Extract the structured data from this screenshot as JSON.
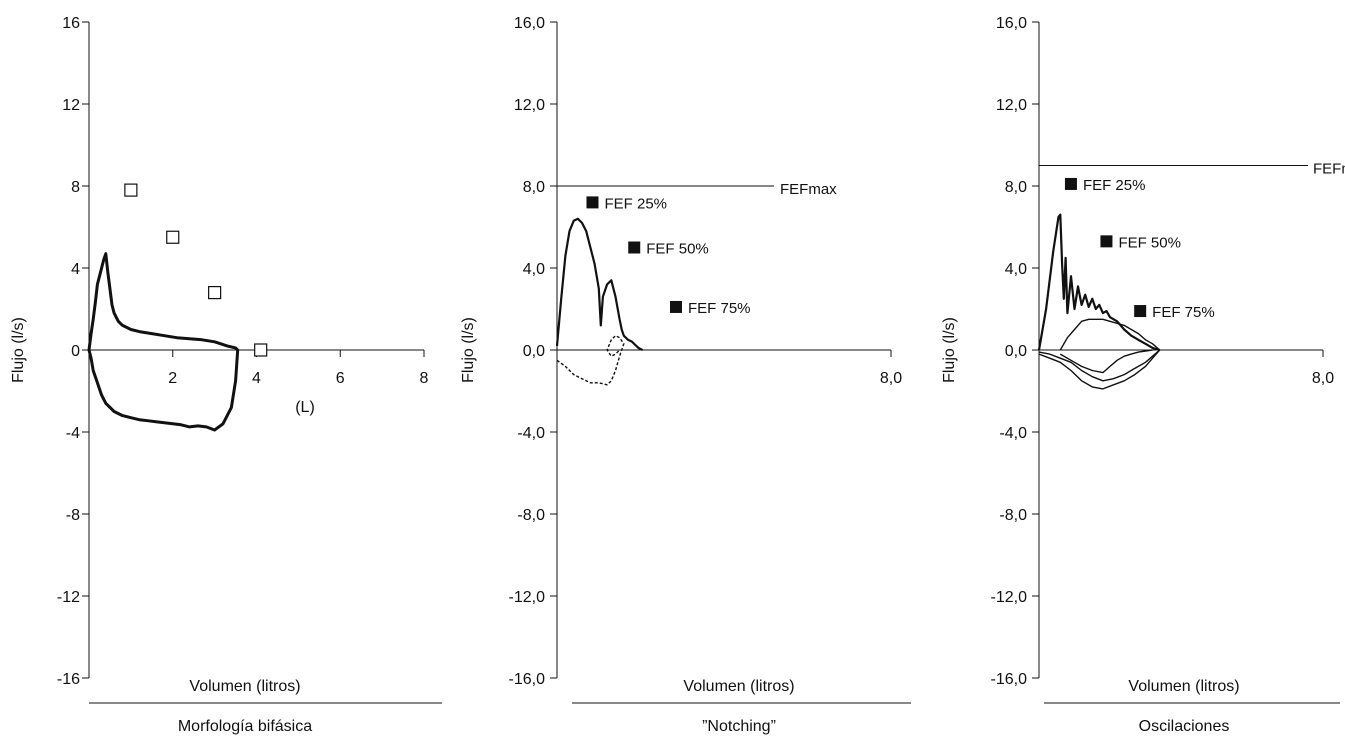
{
  "chart_data": [
    {
      "type": "line",
      "panel_title": "Morfología bifásica",
      "xlabel": "Volumen (litros)",
      "xunit_label": "(L)",
      "ylabel": "Flujo (l/s)",
      "xlim": [
        0,
        8
      ],
      "ylim": [
        -16,
        16
      ],
      "x_ticks": [
        "2",
        "4",
        "6",
        "8"
      ],
      "y_ticks": [
        "16",
        "12",
        "8",
        "4",
        "0",
        "-4",
        "-8",
        "-12",
        "-16"
      ],
      "series": [
        {
          "x": [
            0.0,
            0.05,
            0.1,
            0.15,
            0.2,
            0.3,
            0.35,
            0.4,
            0.45,
            0.5,
            0.55,
            0.6,
            0.7,
            0.8,
            0.9,
            1.0,
            1.2,
            1.5,
            1.8,
            2.1,
            2.4,
            2.7,
            3.0,
            3.3,
            3.5,
            3.55,
            3.5,
            3.4,
            3.2,
            3.0,
            2.8,
            2.6,
            2.4,
            2.2,
            2.0,
            1.8,
            1.6,
            1.4,
            1.2,
            1.0,
            0.8,
            0.6,
            0.4,
            0.3,
            0.2,
            0.1,
            0.05,
            0.0
          ],
          "y": [
            0.0,
            0.8,
            1.5,
            2.3,
            3.2,
            4.0,
            4.4,
            4.7,
            3.8,
            3.0,
            2.2,
            1.8,
            1.4,
            1.2,
            1.1,
            1.0,
            0.9,
            0.8,
            0.7,
            0.6,
            0.55,
            0.5,
            0.4,
            0.2,
            0.1,
            0.0,
            -1.5,
            -2.8,
            -3.6,
            -3.9,
            -3.75,
            -3.7,
            -3.75,
            -3.65,
            -3.6,
            -3.55,
            -3.5,
            -3.45,
            -3.4,
            -3.3,
            -3.2,
            -3.0,
            -2.6,
            -2.2,
            -1.6,
            -1.0,
            -0.4,
            0.0
          ]
        }
      ],
      "markers": {
        "style": "open-square",
        "points": [
          {
            "x": 1.0,
            "y": 7.8
          },
          {
            "x": 2.0,
            "y": 5.5
          },
          {
            "x": 3.0,
            "y": 2.8
          },
          {
            "x": 4.1,
            "y": 0.0
          }
        ]
      }
    },
    {
      "type": "line",
      "panel_title": "”Notching”",
      "xlabel": "Volumen (litros)",
      "ylabel": "Flujo (l/s)",
      "xlim": [
        0,
        8
      ],
      "ylim": [
        -16,
        16
      ],
      "x_ticks": [
        "8,0"
      ],
      "y_ticks": [
        "16,0",
        "12,0",
        "8,0",
        "4,0",
        "0,0",
        "-4,0",
        "-8,0",
        "-12,0",
        "-16,0"
      ],
      "reference_line": {
        "label": "FEFmax",
        "y": 8.0
      },
      "series": [
        {
          "x": [
            0.0,
            0.1,
            0.2,
            0.3,
            0.4,
            0.5,
            0.6,
            0.7,
            0.8,
            0.9,
            1.0,
            1.05,
            1.1,
            1.2,
            1.3,
            1.4,
            1.5,
            1.55,
            1.6,
            1.7,
            1.8,
            1.9,
            1.95,
            2.0,
            2.05
          ],
          "y": [
            0.2,
            2.5,
            4.6,
            5.8,
            6.3,
            6.4,
            6.2,
            5.8,
            5.0,
            4.2,
            3.0,
            1.2,
            2.6,
            3.2,
            3.4,
            2.6,
            1.5,
            1.0,
            0.7,
            0.5,
            0.4,
            0.2,
            0.1,
            0.05,
            0.0
          ]
        },
        {
          "style": "dotted",
          "x": [
            0.0,
            0.2,
            0.4,
            0.6,
            0.8,
            1.0,
            1.2,
            1.3,
            1.4,
            1.5,
            1.6,
            1.5,
            1.4,
            1.3,
            1.2,
            1.3,
            1.4,
            1.5
          ],
          "y": [
            -0.5,
            -0.8,
            -1.2,
            -1.4,
            -1.6,
            -1.6,
            -1.7,
            -1.5,
            -1.0,
            -0.3,
            0.3,
            0.6,
            0.7,
            0.5,
            0.0,
            -0.3,
            -0.2,
            0.0
          ]
        }
      ],
      "markers": {
        "style": "filled-square",
        "points": [
          {
            "label": "FEF 25%",
            "x": 0.85,
            "y": 7.2
          },
          {
            "label": "FEF 50%",
            "x": 1.85,
            "y": 5.0
          },
          {
            "label": "FEF 75%",
            "x": 2.85,
            "y": 2.1
          }
        ]
      }
    },
    {
      "type": "line",
      "panel_title": "Oscilaciones",
      "xlabel": "Volumen (litros)",
      "ylabel": "Flujo (l/s)",
      "xlim": [
        0,
        8
      ],
      "ylim": [
        -16,
        16
      ],
      "x_ticks": [
        "8,0"
      ],
      "y_ticks": [
        "16,0",
        "12,0",
        "8,0",
        "4,0",
        "0,0",
        "-4,0",
        "-8,0",
        "-12,0",
        "-16,0"
      ],
      "reference_line": {
        "label": "FEFmax",
        "y": 9.0
      },
      "series": [
        {
          "x": [
            0.0,
            0.2,
            0.4,
            0.55,
            0.6,
            0.65,
            0.7,
            0.75,
            0.8,
            0.9,
            1.0,
            1.1,
            1.2,
            1.3,
            1.4,
            1.5,
            1.6,
            1.7,
            1.8,
            1.9,
            2.0,
            2.2,
            2.4,
            2.6,
            2.8,
            3.0,
            3.2,
            3.4
          ],
          "y": [
            0.0,
            2.0,
            4.8,
            6.5,
            6.6,
            4.2,
            2.5,
            4.5,
            1.8,
            3.6,
            2.0,
            3.1,
            2.2,
            2.7,
            2.1,
            2.5,
            2.0,
            2.2,
            1.8,
            1.9,
            1.6,
            1.4,
            1.0,
            0.7,
            0.5,
            0.3,
            0.1,
            0.0
          ]
        },
        {
          "x": [
            0.6,
            0.8,
            1.0,
            1.2,
            1.4,
            1.6,
            1.8,
            2.0,
            2.2,
            2.4,
            2.6,
            2.8,
            3.0,
            3.2,
            3.4
          ],
          "y": [
            0.0,
            0.6,
            1.0,
            1.4,
            1.5,
            1.5,
            1.5,
            1.4,
            1.3,
            1.2,
            1.0,
            0.8,
            0.5,
            0.3,
            0.0
          ]
        },
        {
          "x": [
            0.0,
            0.3,
            0.6,
            0.9,
            1.2,
            1.5,
            1.8,
            2.1,
            2.4,
            2.7,
            3.0,
            3.2,
            3.4
          ],
          "y": [
            -0.2,
            -0.4,
            -0.6,
            -1.0,
            -1.5,
            -1.8,
            -1.9,
            -1.7,
            -1.5,
            -1.2,
            -0.8,
            -0.4,
            0.0
          ]
        },
        {
          "x": [
            0.0,
            0.3,
            0.6,
            0.9,
            1.2,
            1.5,
            1.8,
            2.1,
            2.4,
            2.7,
            3.0,
            3.2,
            3.4
          ],
          "y": [
            -0.1,
            -0.2,
            -0.4,
            -0.6,
            -1.0,
            -1.3,
            -1.5,
            -1.4,
            -1.2,
            -0.9,
            -0.6,
            -0.3,
            0.0
          ]
        },
        {
          "x": [
            0.6,
            0.9,
            1.2,
            1.5,
            1.8,
            2.0,
            2.2,
            2.4,
            2.6,
            2.8,
            3.0,
            3.2
          ],
          "y": [
            -0.2,
            -0.5,
            -0.8,
            -1.0,
            -1.1,
            -0.8,
            -0.5,
            -0.3,
            -0.2,
            -0.1,
            -0.05,
            0.0
          ]
        }
      ],
      "markers": {
        "style": "filled-square",
        "points": [
          {
            "label": "FEF 25%",
            "x": 0.9,
            "y": 8.1
          },
          {
            "label": "FEF 50%",
            "x": 1.9,
            "y": 5.3
          },
          {
            "label": "FEF 75%",
            "x": 2.85,
            "y": 1.9
          }
        ]
      }
    }
  ]
}
